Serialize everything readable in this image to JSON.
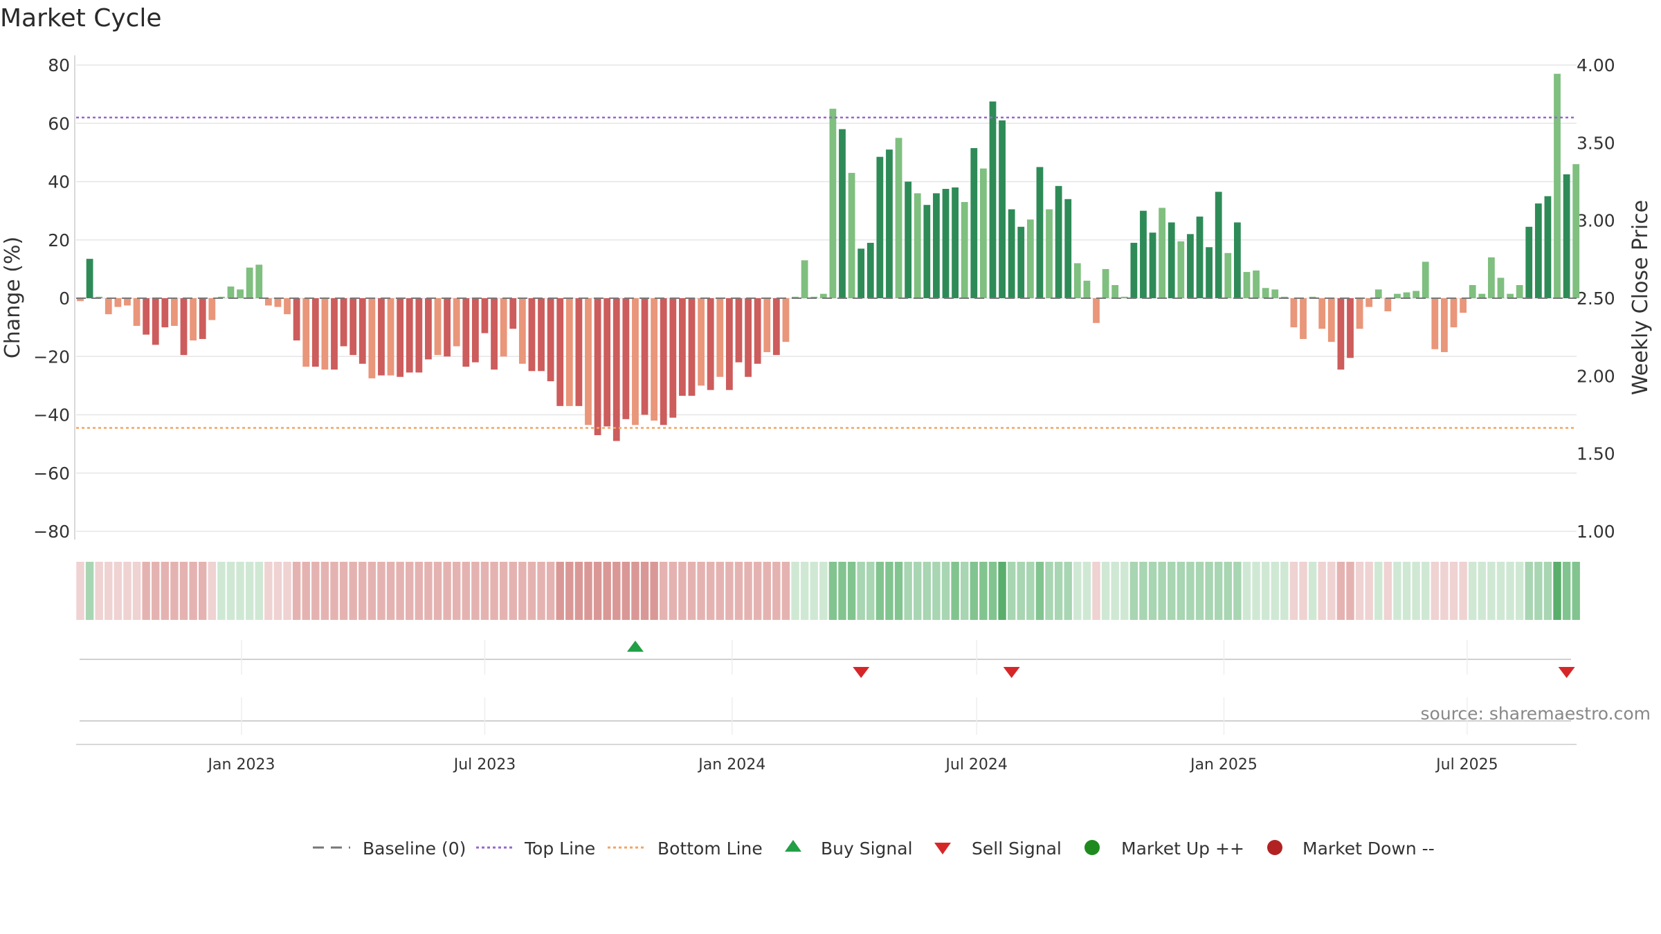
{
  "chart_data": {
    "type": "bar",
    "title": "Market Cycle",
    "ylabel": "Change (%)",
    "y2label": "Weekly Close Price",
    "ylim": [
      -80,
      80
    ],
    "y2lim": [
      1.0,
      4.0
    ],
    "yticks": [
      "80",
      "60",
      "40",
      "20",
      "0",
      "−20",
      "−40",
      "−60",
      "−80"
    ],
    "y2ticks": [
      "4.00",
      "3.50",
      "3.00",
      "2.50",
      "2.00",
      "1.50",
      "1.00"
    ],
    "xticks": [
      "Jan 2023",
      "Jul 2023",
      "Jan 2024",
      "Jul 2024",
      "Jan 2025",
      "Jul 2025"
    ],
    "start_date": "2022-09-03",
    "week_step": 1,
    "top_line": 62,
    "bottom_line": -44.5,
    "values": [
      -1,
      13.5,
      0.5,
      -5.5,
      -3,
      -2.5,
      -9.5,
      -12.5,
      -16,
      -10,
      -9.5,
      -19.5,
      -14.5,
      -14,
      -7.5,
      0.5,
      4,
      3,
      10.5,
      11.5,
      -2.5,
      -3,
      -5.5,
      -14.5,
      -23.5,
      -23.5,
      -24.5,
      -24.5,
      -16.5,
      -19.5,
      -22.5,
      -27.5,
      -26.5,
      -26.5,
      -27,
      -25.5,
      -25.5,
      -21,
      -19.5,
      -20,
      -16.5,
      -23.5,
      -22,
      -12,
      -24.5,
      -20,
      -10.5,
      -22.5,
      -25,
      -25,
      -28.5,
      -37,
      -37,
      -37,
      -43.5,
      -47,
      -44,
      -49,
      -41.5,
      -43.5,
      -40,
      -42,
      -43.5,
      -41,
      -33.5,
      -33.5,
      -30,
      -31.5,
      -27,
      -31.5,
      -22,
      -27,
      -22.5,
      -18.5,
      -19.5,
      -15,
      0.5,
      13,
      0.5,
      1.5,
      65,
      58,
      43,
      17,
      19,
      48.5,
      51,
      55,
      40,
      36,
      32,
      36,
      37.5,
      38,
      33,
      51.5,
      44.5,
      67.5,
      61,
      30.5,
      24.5,
      27,
      45,
      30.5,
      38.5,
      34,
      12,
      6,
      -8.5,
      10,
      4.5,
      0.5,
      19,
      30,
      22.5,
      31,
      26,
      19.5,
      22,
      28,
      17.5,
      36.5,
      15.5,
      26,
      9,
      9.5,
      3.5,
      3,
      0.5,
      -10,
      -14,
      0.5,
      -10.5,
      -15,
      -24.5,
      -20.5,
      -10.5,
      -3,
      3,
      -4.5,
      1.5,
      2,
      2.5,
      12.5,
      -17.5,
      -18.5,
      -10,
      -5,
      4.5,
      1.5,
      14,
      7,
      1.5,
      4.5,
      24.5,
      32.5,
      35,
      77,
      42.5,
      46
    ],
    "band_levels": [
      -1,
      2,
      -1,
      -1,
      -1,
      -1,
      -1,
      -2,
      -2,
      -2,
      -2,
      -2,
      -2,
      -2,
      -1,
      1,
      1,
      1,
      1,
      1,
      -1,
      -1,
      -1,
      -2,
      -2,
      -2,
      -2,
      -2,
      -2,
      -2,
      -2,
      -2,
      -2,
      -2,
      -2,
      -2,
      -2,
      -2,
      -2,
      -2,
      -2,
      -2,
      -2,
      -2,
      -2,
      -2,
      -2,
      -2,
      -2,
      -2,
      -2,
      -3,
      -3,
      -3,
      -3,
      -3,
      -3,
      -3,
      -3,
      -3,
      -3,
      -3,
      -2,
      -2,
      -2,
      -2,
      -2,
      -2,
      -2,
      -2,
      -2,
      -2,
      -2,
      -2,
      -2,
      -2,
      1,
      1,
      1,
      1,
      3,
      3,
      3,
      2,
      2,
      3,
      3,
      3,
      2,
      2,
      2,
      2,
      2,
      3,
      2,
      3,
      3,
      3,
      4,
      2,
      2,
      2,
      3,
      2,
      2,
      2,
      1,
      1,
      -1,
      1,
      1,
      1,
      2,
      2,
      2,
      2,
      2,
      2,
      2,
      2,
      2,
      2,
      2,
      2,
      1,
      1,
      1,
      1,
      1,
      -1,
      -1,
      1,
      -1,
      -1,
      -2,
      -2,
      -1,
      -1,
      1,
      -1,
      1,
      1,
      1,
      1,
      -1,
      -1,
      -1,
      -1,
      1,
      1,
      1,
      1,
      1,
      1,
      2,
      2,
      2,
      4,
      3,
      3
    ],
    "buy_signals": [
      "2023-10-21"
    ],
    "sell_signals": [
      "2024-04-06",
      "2024-07-27",
      "2025-09-13"
    ],
    "legend": [
      "Baseline (0)",
      "Top Line",
      "Bottom Line",
      "Buy Signal",
      "Sell Signal",
      "Market Up ++",
      "Market Down --"
    ],
    "colors": {
      "up_strong": "#2e8b57",
      "up_light": "#7fbf7f",
      "down_strong": "#cd5c5c",
      "down_light": "#e9967a",
      "top_line": "#9966cc",
      "bottom_line": "#f4a460",
      "buy": "#22a045",
      "sell": "#d62728",
      "market_up": "#1e8a1e",
      "market_down": "#b22222",
      "baseline": "#777777"
    },
    "source": "source: sharemaestro.com"
  }
}
